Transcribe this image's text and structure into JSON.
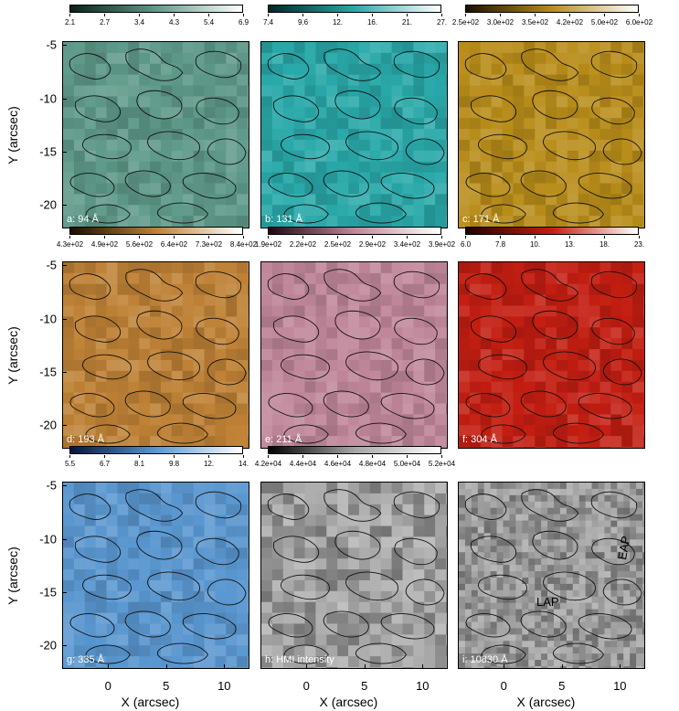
{
  "axes": {
    "y_title": "Y (arcsec)",
    "x_title": "X (arcsec)",
    "y_ticks": [
      "-5",
      "-10",
      "-15",
      "-20"
    ],
    "x_ticks": [
      "0",
      "5",
      "10"
    ]
  },
  "panels": [
    {
      "label": "a: 94 Å",
      "color": "#5f9a8a",
      "cb_start": "#0a2018",
      "cb_end": "#ffffff",
      "cb_ticks": [
        "2.1",
        "2.7",
        "3.4",
        "4.3",
        "5.4",
        "6.9"
      ]
    },
    {
      "label": "b: 131 Å",
      "color": "#2aa9aa",
      "cb_start": "#002626",
      "cb_end": "#ffffff",
      "cb_ticks": [
        "7.4",
        "9.6",
        "12.",
        "16.",
        "21.",
        "27."
      ]
    },
    {
      "label": "c: 171 Å",
      "color": "#b98d1a",
      "cb_start": "#1a1000",
      "cb_end": "#ffffff",
      "cb_ticks": [
        "2.5e+02",
        "3.0e+02",
        "3.5e+02",
        "4.2e+02",
        "5.0e+02",
        "6.0e+02"
      ]
    },
    {
      "label": "d: 193 Å",
      "color": "#bf8236",
      "cb_start": "#1a0d00",
      "cb_end": "#ffffff",
      "cb_ticks": [
        "4.3e+02",
        "4.9e+02",
        "5.6e+02",
        "6.4e+02",
        "7.3e+02",
        "8.4e+02"
      ]
    },
    {
      "label": "e: 211 Å",
      "color": "#c0879a",
      "cb_start": "#1f0712",
      "cb_end": "#ffffff",
      "cb_ticks": [
        "1.9e+02",
        "2.2e+02",
        "2.5e+02",
        "2.9e+02",
        "3.4e+02",
        "3.9e+02"
      ]
    },
    {
      "label": "f: 304 Å",
      "color": "#c41e12",
      "cb_start": "#200000",
      "cb_end": "#ffffff",
      "cb_ticks": [
        "6.0",
        "7.8",
        "10.",
        "13.",
        "18.",
        "23."
      ]
    },
    {
      "label": "g: 335 Å",
      "color": "#5a97d0",
      "cb_start": "#05153a",
      "cb_end": "#ffffff",
      "cb_ticks": [
        "5.5",
        "6.7",
        "8.1",
        "9.8",
        "12.",
        "14."
      ]
    },
    {
      "label": "h: HMI intensity",
      "color": "#a5a5a5",
      "cb_start": "#000000",
      "cb_end": "#ffffff",
      "cb_ticks": [
        "4.2e+04",
        "4.4e+04",
        "4.6e+04",
        "4.8e+04",
        "5.0e+04",
        "5.2e+04"
      ]
    },
    {
      "label": "i: 10830 Å",
      "color": "#9b9b9b",
      "cb_start": null,
      "cb_end": null,
      "cb_ticks": []
    }
  ],
  "annotations": {
    "lap": "LAP",
    "eap": "EAP"
  }
}
